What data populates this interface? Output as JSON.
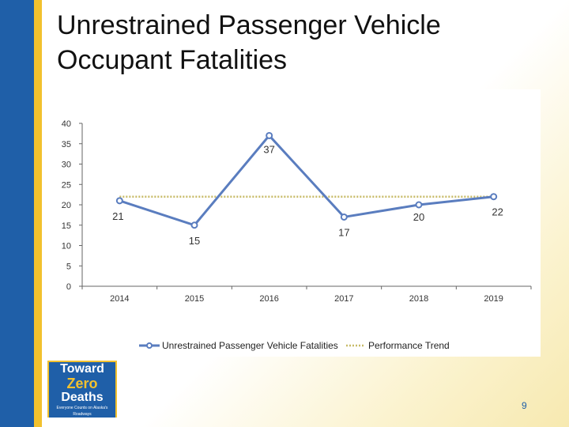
{
  "slide": {
    "title": "Unrestrained Passenger Vehicle Occupant Fatalities",
    "page_number": "9",
    "logo": {
      "line1": "Toward",
      "line2": "Zero",
      "line3": "Deaths",
      "tagline": "Everyone Counts on Alaska's Roadways"
    }
  },
  "colors": {
    "series": "#5a7dbf",
    "trend": "#c8bb68",
    "band_blue": "#1f5fa8",
    "band_gold": "#f2c12e"
  },
  "chart_data": {
    "type": "line",
    "title": "",
    "xlabel": "",
    "ylabel": "",
    "categories": [
      "2014",
      "2015",
      "2016",
      "2017",
      "2018",
      "2019"
    ],
    "ylim": [
      0,
      40
    ],
    "yticks": [
      0,
      5,
      10,
      15,
      20,
      25,
      30,
      35,
      40
    ],
    "grid": false,
    "legend_position": "bottom",
    "series": [
      {
        "name": "Unrestrained Passenger Vehicle Fatalities",
        "values": [
          21,
          15,
          37,
          17,
          20,
          22
        ],
        "data_labels": [
          "21",
          "15",
          "37",
          "17",
          "20",
          "22"
        ],
        "style": "solid-marker"
      },
      {
        "name": "Performance Trend",
        "values": [
          22,
          22,
          22,
          22,
          22,
          22
        ],
        "style": "dotted"
      }
    ]
  }
}
